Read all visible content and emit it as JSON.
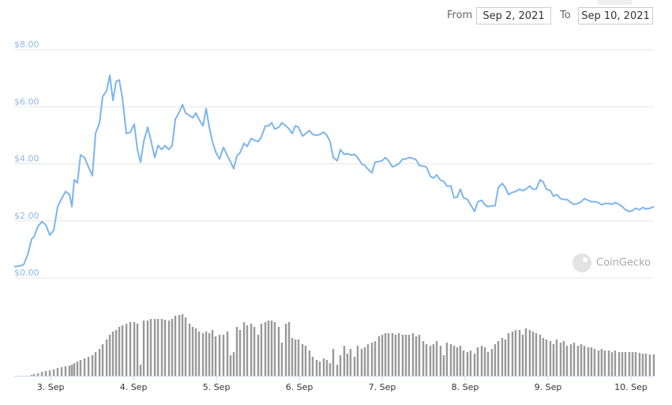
{
  "header": {
    "from_label": "From",
    "from_date": "Sep 2, 2021",
    "to_label": "To",
    "to_date": "Sep 10, 2021",
    "watermark": "CoinGecko"
  },
  "chart_data": {
    "type": "line",
    "color": "#7cb5ec",
    "grid": true,
    "xlim": [
      2.561,
      10.276
    ],
    "ylim": [
      0,
      8
    ],
    "xticks": [
      {
        "value": 3,
        "label": "3. Sep"
      },
      {
        "value": 4,
        "label": "4. Sep"
      },
      {
        "value": 5,
        "label": "5. Sep"
      },
      {
        "value": 6,
        "label": "6. Sep"
      },
      {
        "value": 7,
        "label": "7. Sep"
      },
      {
        "value": 8,
        "label": "8. Sep"
      },
      {
        "value": 9,
        "label": "9. Sep"
      },
      {
        "value": 10,
        "label": "10. Sep"
      }
    ],
    "yticks": [
      {
        "value": 0,
        "label": "$0.00"
      },
      {
        "value": 2,
        "label": "$2.00"
      },
      {
        "value": 4,
        "label": "$4.00"
      },
      {
        "value": 6,
        "label": "$6.00"
      },
      {
        "value": 8,
        "label": "$8.00"
      }
    ],
    "x": [
      2.561,
      2.628,
      2.676,
      2.723,
      2.771,
      2.8,
      2.847,
      2.895,
      2.942,
      2.99,
      3.038,
      3.085,
      3.133,
      3.18,
      3.228,
      3.257,
      3.285,
      3.323,
      3.361,
      3.409,
      3.457,
      3.504,
      3.542,
      3.59,
      3.628,
      3.676,
      3.714,
      3.752,
      3.79,
      3.828,
      3.866,
      3.914,
      3.961,
      4.009,
      4.047,
      4.085,
      4.123,
      4.171,
      4.209,
      4.257,
      4.295,
      4.342,
      4.38,
      4.428,
      4.466,
      4.504,
      4.552,
      4.59,
      4.628,
      4.676,
      4.714,
      4.752,
      4.79,
      4.838,
      4.876,
      4.914,
      4.952,
      4.99,
      5.038,
      5.085,
      5.133,
      5.171,
      5.209,
      5.247,
      5.285,
      5.333,
      5.371,
      5.419,
      5.457,
      5.504,
      5.542,
      5.59,
      5.628,
      5.666,
      5.704,
      5.752,
      5.79,
      5.838,
      5.876,
      5.914,
      5.952,
      5.99,
      6.038,
      6.076,
      6.123,
      6.161,
      6.209,
      6.247,
      6.295,
      6.333,
      6.371,
      6.409,
      6.457,
      6.495,
      6.542,
      6.58,
      6.618,
      6.666,
      6.704,
      6.752,
      6.79,
      6.828,
      6.876,
      6.914,
      6.961,
      7.0,
      7.038,
      7.076,
      7.123,
      7.161,
      7.2,
      7.247,
      7.285,
      7.323,
      7.371,
      7.409,
      7.447,
      7.495,
      7.533,
      7.58,
      7.618,
      7.657,
      7.704,
      7.742,
      7.78,
      7.828,
      7.866,
      7.904,
      7.942,
      7.98,
      8.028,
      8.066,
      8.114,
      8.152,
      8.2,
      8.238,
      8.276,
      8.323,
      8.361,
      8.4,
      8.447,
      8.485,
      8.523,
      8.571,
      8.609,
      8.657,
      8.695,
      8.733,
      8.78,
      8.819,
      8.857,
      8.904,
      8.942,
      8.98,
      9.028,
      9.066,
      9.104,
      9.152,
      9.19,
      9.228,
      9.276,
      9.314,
      9.361,
      9.4,
      9.438,
      9.485,
      9.523,
      9.561,
      9.609,
      9.647,
      9.685,
      9.733,
      9.771,
      9.809,
      9.857,
      9.895,
      9.933,
      9.98,
      10.019,
      10.057,
      10.104,
      10.142,
      10.18,
      10.228,
      10.276
    ],
    "values": [
      0.39,
      0.42,
      0.47,
      0.81,
      1.36,
      1.44,
      1.81,
      1.97,
      1.86,
      1.5,
      1.67,
      2.5,
      2.78,
      3.03,
      2.92,
      2.5,
      3.44,
      3.33,
      4.31,
      4.22,
      3.89,
      3.58,
      5.06,
      5.44,
      6.36,
      6.56,
      7.11,
      6.22,
      6.89,
      6.94,
      6.31,
      5.06,
      5.11,
      5.39,
      4.5,
      4.06,
      4.78,
      5.28,
      4.83,
      4.22,
      4.64,
      4.5,
      4.64,
      4.5,
      4.64,
      5.56,
      5.81,
      6.08,
      5.78,
      5.69,
      5.61,
      5.78,
      5.56,
      5.33,
      5.94,
      5.28,
      4.78,
      4.42,
      4.17,
      4.58,
      4.28,
      4.06,
      3.83,
      4.28,
      4.39,
      4.72,
      4.61,
      4.89,
      4.83,
      4.78,
      4.94,
      5.33,
      5.33,
      5.44,
      5.22,
      5.28,
      5.44,
      5.33,
      5.22,
      5.06,
      5.33,
      5.28,
      4.97,
      5.06,
      5.17,
      5.03,
      5.0,
      5.03,
      5.11,
      5.0,
      4.78,
      4.22,
      4.11,
      4.5,
      4.33,
      4.36,
      4.31,
      4.33,
      4.22,
      4.0,
      3.94,
      3.81,
      3.69,
      4.06,
      4.08,
      4.11,
      4.22,
      4.11,
      3.89,
      3.94,
      4.0,
      4.17,
      4.17,
      4.22,
      4.19,
      4.14,
      3.94,
      3.92,
      3.89,
      3.56,
      3.5,
      3.61,
      3.42,
      3.39,
      3.22,
      3.22,
      2.81,
      2.83,
      3.11,
      2.81,
      2.75,
      2.56,
      2.33,
      2.67,
      2.72,
      2.56,
      2.5,
      2.53,
      2.53,
      3.17,
      3.31,
      3.17,
      2.92,
      3.0,
      3.03,
      3.11,
      3.06,
      3.11,
      3.22,
      3.11,
      3.11,
      3.44,
      3.36,
      3.11,
      3.06,
      2.86,
      2.92,
      2.78,
      2.75,
      2.75,
      2.64,
      2.58,
      2.61,
      2.67,
      2.78,
      2.72,
      2.67,
      2.67,
      2.64,
      2.56,
      2.61,
      2.61,
      2.58,
      2.64,
      2.58,
      2.5,
      2.39,
      2.33,
      2.36,
      2.44,
      2.39,
      2.47,
      2.42,
      2.44,
      2.5
    ],
    "volume": {
      "color": "#999999",
      "values": [
        0,
        0,
        0,
        0,
        1,
        2,
        3,
        5,
        6,
        7,
        8,
        10,
        11,
        12,
        13,
        14,
        16,
        18,
        20,
        22,
        24,
        26,
        30,
        34,
        40,
        46,
        52,
        56,
        58,
        62,
        64,
        66,
        68,
        68,
        66,
        14,
        70,
        70,
        72,
        72,
        72,
        72,
        71,
        70,
        72,
        76,
        77,
        78,
        74,
        66,
        62,
        60,
        56,
        54,
        56,
        54,
        58,
        50,
        52,
        52,
        56,
        26,
        30,
        62,
        58,
        68,
        64,
        66,
        62,
        52,
        66,
        68,
        70,
        70,
        68,
        62,
        42,
        66,
        68,
        48,
        46,
        46,
        40,
        38,
        32,
        24,
        20,
        18,
        22,
        20,
        16,
        34,
        14,
        26,
        38,
        28,
        34,
        24,
        38,
        34,
        36,
        40,
        42,
        44,
        50,
        52,
        54,
        54,
        54,
        52,
        54,
        52,
        52,
        52,
        54,
        50,
        52,
        44,
        40,
        38,
        40,
        44,
        38,
        26,
        42,
        40,
        38,
        36,
        38,
        32,
        30,
        32,
        28,
        36,
        38,
        36,
        30,
        34,
        40,
        44,
        48,
        46,
        54,
        56,
        58,
        58,
        52,
        60,
        58,
        56,
        54,
        52,
        48,
        46,
        44,
        40,
        46,
        42,
        44,
        38,
        40,
        42,
        38,
        40,
        38,
        36,
        36,
        34,
        32,
        34,
        32,
        32,
        30,
        32,
        30,
        30,
        30,
        30,
        30,
        30,
        29,
        28,
        28,
        27,
        27
      ]
    }
  }
}
